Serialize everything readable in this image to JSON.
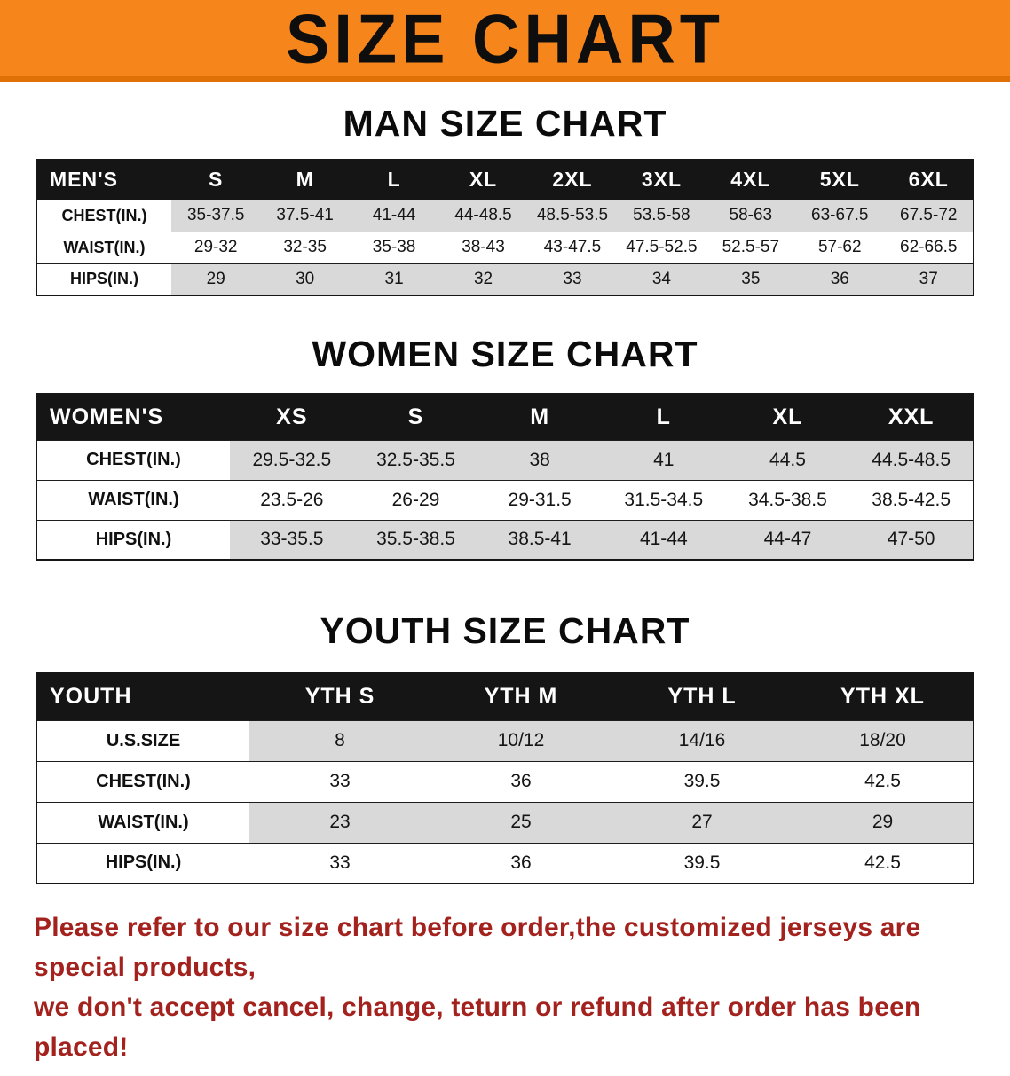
{
  "banner": {
    "title": "SIZE CHART"
  },
  "colors": {
    "banner_orange": "#f6861c",
    "banner_edge": "#e07106",
    "table_header_black": "#151515",
    "stripe_gray": "#d9d9d9",
    "disclaimer_red": "#a3221e"
  },
  "sections": [
    {
      "key": "men",
      "heading": "MAN SIZE CHART",
      "table": {
        "header": [
          "MEN'S",
          "S",
          "M",
          "L",
          "XL",
          "2XL",
          "3XL",
          "4XL",
          "5XL",
          "6XL"
        ],
        "rows": [
          [
            "CHEST(IN.)",
            "35-37.5",
            "37.5-41",
            "41-44",
            "44-48.5",
            "48.5-53.5",
            "53.5-58",
            "58-63",
            "63-67.5",
            "67.5-72"
          ],
          [
            "WAIST(IN.)",
            "29-32",
            "32-35",
            "35-38",
            "38-43",
            "43-47.5",
            "47.5-52.5",
            "52.5-57",
            "57-62",
            "62-66.5"
          ],
          [
            "HIPS(IN.)",
            "29",
            "30",
            "31",
            "32",
            "33",
            "34",
            "35",
            "36",
            "37"
          ]
        ]
      }
    },
    {
      "key": "women",
      "heading": "WOMEN SIZE CHART",
      "table": {
        "header": [
          "WOMEN'S",
          "XS",
          "S",
          "M",
          "L",
          "XL",
          "XXL"
        ],
        "rows": [
          [
            "CHEST(IN.)",
            "29.5-32.5",
            "32.5-35.5",
            "38",
            "41",
            "44.5",
            "44.5-48.5"
          ],
          [
            "WAIST(IN.)",
            "23.5-26",
            "26-29",
            "29-31.5",
            "31.5-34.5",
            "34.5-38.5",
            "38.5-42.5"
          ],
          [
            "HIPS(IN.)",
            "33-35.5",
            "35.5-38.5",
            "38.5-41",
            "41-44",
            "44-47",
            "47-50"
          ]
        ]
      }
    },
    {
      "key": "youth",
      "heading": "YOUTH SIZE CHART",
      "table": {
        "header": [
          "YOUTH",
          "YTH S",
          "YTH M",
          "YTH L",
          "YTH XL"
        ],
        "rows": [
          [
            "U.S.SIZE",
            "8",
            "10/12",
            "14/16",
            "18/20"
          ],
          [
            "CHEST(IN.)",
            "33",
            "36",
            "39.5",
            "42.5"
          ],
          [
            "WAIST(IN.)",
            "23",
            "25",
            "27",
            "29"
          ],
          [
            "HIPS(IN.)",
            "33",
            "36",
            "39.5",
            "42.5"
          ]
        ]
      }
    }
  ],
  "disclaimer": {
    "line1": "Please refer to our size chart before order,the customized jerseys are special products,",
    "line2": "we don't accept cancel, change, teturn or refund after order has been placed!"
  }
}
